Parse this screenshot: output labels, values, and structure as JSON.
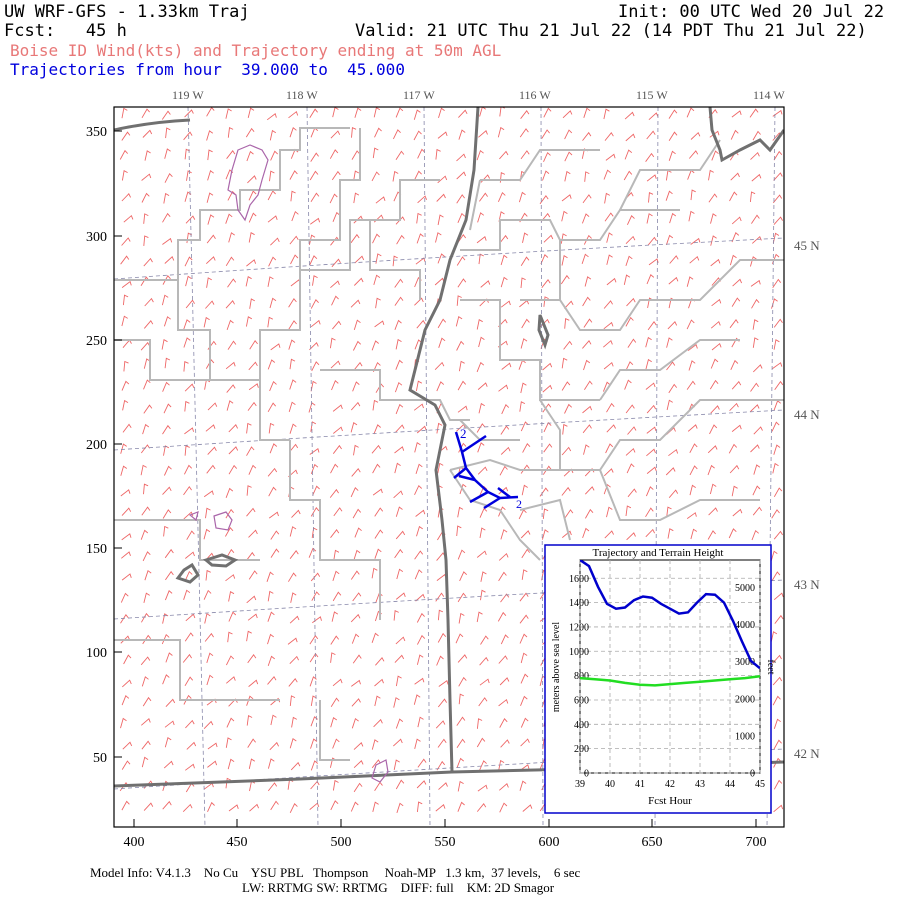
{
  "header": {
    "title_left": "UW WRF-GFS - 1.33km Traj",
    "init": "Init: 00 UTC Wed 20 Jul 22",
    "fcst": "Fcst:   45 h",
    "valid": "Valid: 21 UTC Thu 21 Jul 22 (14 PDT Thu 21 Jul 22)",
    "subtitle": "Boise ID Wind(kts) and Trajectory ending at 50m AGL",
    "traj_range": "Trajectories from hour  39.000 to  45.000"
  },
  "map": {
    "top_labels": [
      "119 W",
      "118 W",
      "117 W",
      "116 W",
      "115 W",
      "114 W"
    ],
    "right_labels": [
      "45 N",
      "44 N",
      "43 N",
      "42 N"
    ],
    "x_ticks": [
      "400",
      "450",
      "500",
      "550",
      "600",
      "650",
      "700"
    ],
    "y_ticks": [
      "350",
      "300",
      "250",
      "200",
      "150",
      "100",
      "50"
    ],
    "trajectory_start_label": "2",
    "trajectory_end_label": "2"
  },
  "inset": {
    "title": "Trajectory and Terrain Height",
    "ylabel_left": "meters above sea level",
    "ylabel_right": "feet",
    "xlabel": "Fcst Hour",
    "x_ticks": [
      "39",
      "40",
      "41",
      "42",
      "43",
      "44",
      "45"
    ],
    "y_left_ticks": [
      "0",
      "200",
      "400",
      "600",
      "800",
      "1000",
      "1200",
      "1400",
      "1600"
    ],
    "y_right_ticks": [
      "0",
      "1000",
      "2000",
      "3000",
      "4000",
      "5000"
    ]
  },
  "chart_data": {
    "type": "line",
    "title": "Trajectory and Terrain Height",
    "xlabel": "Fcst Hour",
    "ylabel": "meters above sea level",
    "xlim": [
      39,
      45
    ],
    "ylim": [
      0,
      1750
    ],
    "grid": true,
    "series": [
      {
        "color": "#0000cc",
        "x": [
          39.0,
          39.3,
          39.6,
          39.9,
          40.2,
          40.5,
          40.8,
          41.1,
          41.4,
          41.7,
          42.0,
          42.3,
          42.6,
          42.9,
          43.2,
          43.5,
          43.8,
          44.1,
          44.4,
          44.7,
          45.0
        ],
        "y": [
          1750,
          1700,
          1530,
          1390,
          1350,
          1360,
          1420,
          1450,
          1440,
          1390,
          1350,
          1310,
          1320,
          1400,
          1470,
          1465,
          1400,
          1250,
          1080,
          920,
          860
        ]
      },
      {
        "color": "#22dd22",
        "x": [
          39.0,
          39.5,
          40.0,
          40.5,
          41.0,
          41.5,
          42.0,
          42.5,
          43.0,
          43.5,
          44.0,
          44.5,
          45.0
        ],
        "y": [
          780,
          770,
          760,
          740,
          725,
          720,
          730,
          740,
          750,
          760,
          770,
          780,
          795
        ]
      }
    ]
  },
  "colors": {
    "wind_barb": "#ee6666",
    "state_border": "#707070",
    "county_border": "#b8b8b8",
    "trajectory": "#0000dd",
    "terrain": "#22dd22",
    "lakes": "#aa66aa"
  },
  "footer": {
    "line1": "Model Info: V4.1.3    No Cu    YSU PBL   Thompson     Noah-MP   1.3 km,  37 levels,    6 sec",
    "line2": "LW: RRTMG SW: RRTMG    DIFF: full    KM: 2D Smagor"
  }
}
